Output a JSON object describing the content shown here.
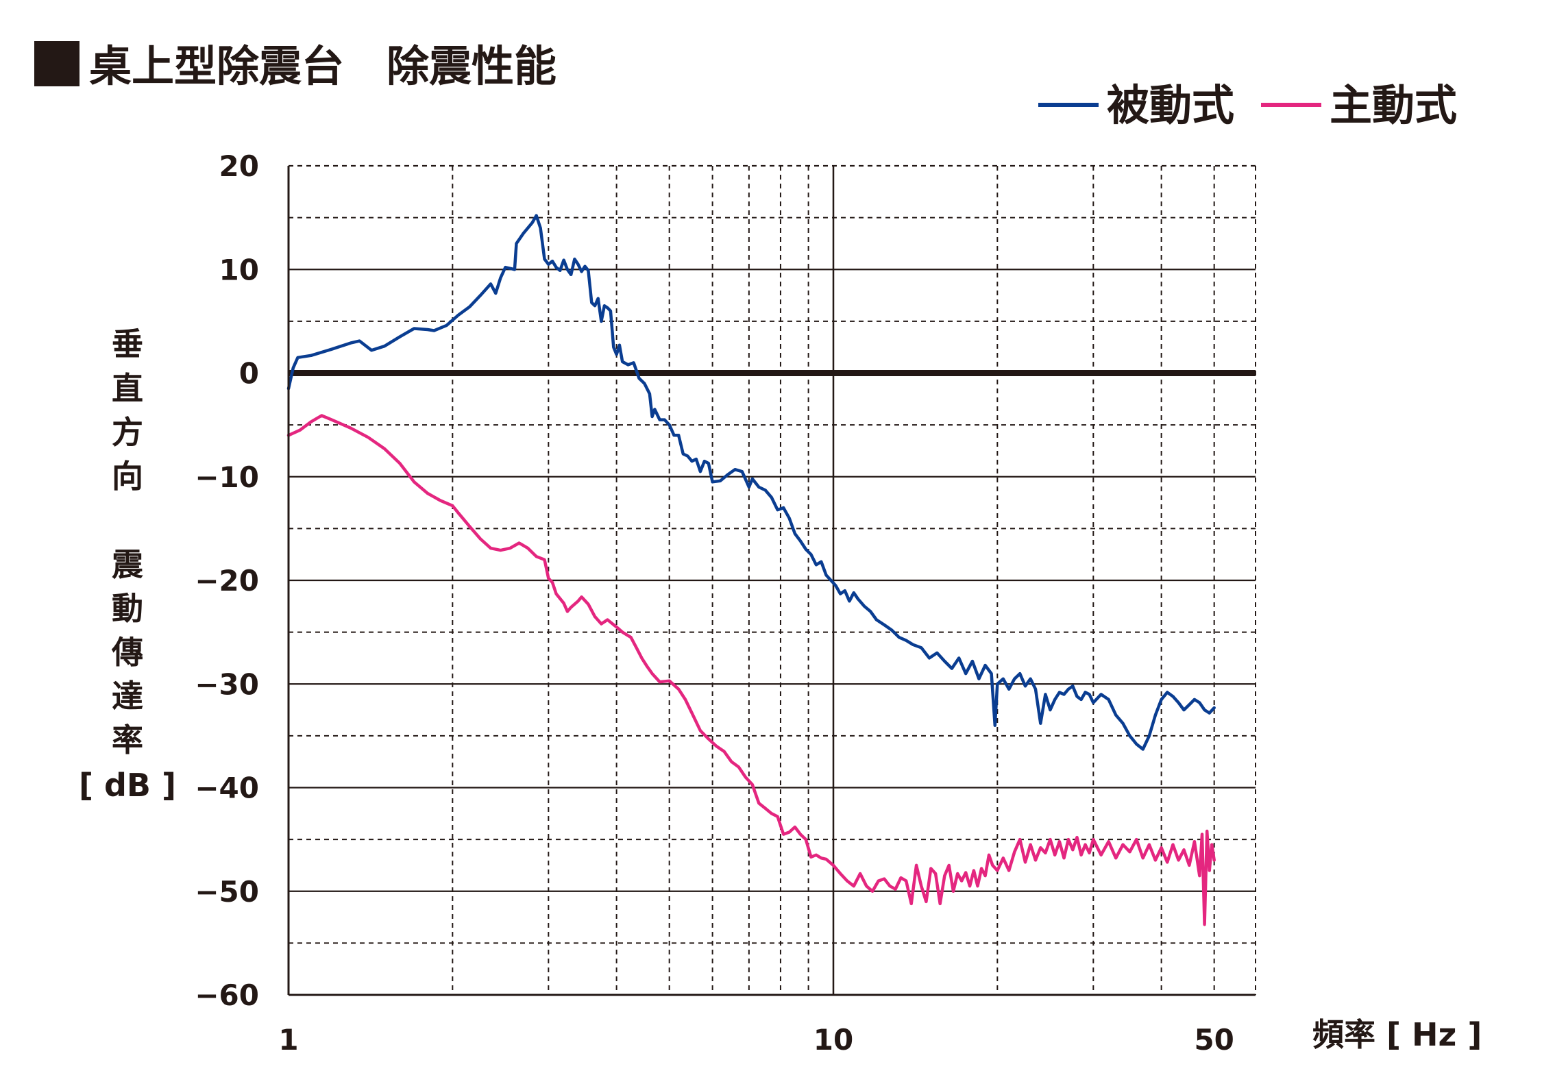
{
  "title": "桌上型除震台　除震性能",
  "chart_data": {
    "type": "line",
    "x_scale": "log",
    "xlim": [
      1,
      50
    ],
    "ylim": [
      -60,
      20
    ],
    "x_ticks": [
      {
        "value": 1,
        "label": "1"
      },
      {
        "value": 10,
        "label": "10"
      },
      {
        "value": 50,
        "label": "50"
      }
    ],
    "y_ticks": [
      {
        "value": 20,
        "label": "20"
      },
      {
        "value": 10,
        "label": "10"
      },
      {
        "value": 0,
        "label": "0"
      },
      {
        "value": -10,
        "label": "−10"
      },
      {
        "value": -20,
        "label": "−20"
      },
      {
        "value": -30,
        "label": "−30"
      },
      {
        "value": -40,
        "label": "−40"
      },
      {
        "value": -50,
        "label": "−50"
      },
      {
        "value": -60,
        "label": "−60"
      }
    ],
    "xlabel": "頻率 [ Hz ]",
    "ylabel_lines": [
      "垂",
      "直",
      "方",
      "向",
      "",
      "震",
      "動",
      "傳",
      "達",
      "率",
      "[ dB ]"
    ],
    "legend_position": "top-right",
    "grid": true,
    "reference_line": {
      "y": 0,
      "color": "#231815"
    },
    "series": [
      {
        "name": "被動式",
        "color": "#0a3d91",
        "points": [
          [
            1.0,
            -1.5
          ],
          [
            1.02,
            0.5
          ],
          [
            1.04,
            1.5
          ],
          [
            1.1,
            1.7
          ],
          [
            1.2,
            2.3
          ],
          [
            1.3,
            2.9
          ],
          [
            1.35,
            3.1
          ],
          [
            1.42,
            2.2
          ],
          [
            1.5,
            2.6
          ],
          [
            1.6,
            3.5
          ],
          [
            1.7,
            4.3
          ],
          [
            1.8,
            4.2
          ],
          [
            1.85,
            4.1
          ],
          [
            1.95,
            4.6
          ],
          [
            2.05,
            5.6
          ],
          [
            2.15,
            6.4
          ],
          [
            2.25,
            7.5
          ],
          [
            2.35,
            8.6
          ],
          [
            2.4,
            7.7
          ],
          [
            2.45,
            9.2
          ],
          [
            2.5,
            10.2
          ],
          [
            2.55,
            10.1
          ],
          [
            2.6,
            10.0
          ],
          [
            2.62,
            12.5
          ],
          [
            2.7,
            13.5
          ],
          [
            2.8,
            14.5
          ],
          [
            2.85,
            15.2
          ],
          [
            2.9,
            14.0
          ],
          [
            2.95,
            11.0
          ],
          [
            3.0,
            10.5
          ],
          [
            3.05,
            10.8
          ],
          [
            3.1,
            10.2
          ],
          [
            3.15,
            9.9
          ],
          [
            3.2,
            10.9
          ],
          [
            3.25,
            10.0
          ],
          [
            3.3,
            9.5
          ],
          [
            3.35,
            11.0
          ],
          [
            3.4,
            10.5
          ],
          [
            3.45,
            9.8
          ],
          [
            3.5,
            10.3
          ],
          [
            3.55,
            9.9
          ],
          [
            3.6,
            6.8
          ],
          [
            3.65,
            6.5
          ],
          [
            3.7,
            7.2
          ],
          [
            3.75,
            5.0
          ],
          [
            3.8,
            6.5
          ],
          [
            3.85,
            6.3
          ],
          [
            3.9,
            6.0
          ],
          [
            3.95,
            2.5
          ],
          [
            4.0,
            1.8
          ],
          [
            4.05,
            2.7
          ],
          [
            4.1,
            1.1
          ],
          [
            4.2,
            0.8
          ],
          [
            4.3,
            1.0
          ],
          [
            4.4,
            -0.5
          ],
          [
            4.5,
            -1.0
          ],
          [
            4.6,
            -2.0
          ],
          [
            4.65,
            -4.2
          ],
          [
            4.7,
            -3.5
          ],
          [
            4.8,
            -4.5
          ],
          [
            4.9,
            -4.5
          ],
          [
            5.0,
            -5.0
          ],
          [
            5.1,
            -6.0
          ],
          [
            5.2,
            -6.0
          ],
          [
            5.3,
            -7.8
          ],
          [
            5.4,
            -8.0
          ],
          [
            5.5,
            -8.5
          ],
          [
            5.6,
            -8.3
          ],
          [
            5.7,
            -9.5
          ],
          [
            5.8,
            -8.5
          ],
          [
            5.9,
            -8.7
          ],
          [
            6.0,
            -10.5
          ],
          [
            6.2,
            -10.4
          ],
          [
            6.4,
            -9.8
          ],
          [
            6.6,
            -9.3
          ],
          [
            6.8,
            -9.5
          ],
          [
            7.0,
            -11.0
          ],
          [
            7.1,
            -10.2
          ],
          [
            7.3,
            -11.0
          ],
          [
            7.5,
            -11.3
          ],
          [
            7.7,
            -12.0
          ],
          [
            7.9,
            -13.2
          ],
          [
            8.1,
            -13.0
          ],
          [
            8.3,
            -14.0
          ],
          [
            8.5,
            -15.5
          ],
          [
            8.7,
            -16.2
          ],
          [
            8.9,
            -17.0
          ],
          [
            9.1,
            -17.5
          ],
          [
            9.3,
            -18.5
          ],
          [
            9.5,
            -18.2
          ],
          [
            9.7,
            -19.5
          ],
          [
            9.9,
            -20.0
          ],
          [
            10.1,
            -20.5
          ],
          [
            10.3,
            -21.3
          ],
          [
            10.5,
            -21.0
          ],
          [
            10.7,
            -22.0
          ],
          [
            10.9,
            -21.2
          ],
          [
            11.1,
            -21.8
          ],
          [
            11.4,
            -22.5
          ],
          [
            11.7,
            -23.0
          ],
          [
            12.0,
            -23.8
          ],
          [
            12.4,
            -24.3
          ],
          [
            12.8,
            -24.8
          ],
          [
            13.2,
            -25.5
          ],
          [
            13.6,
            -25.8
          ],
          [
            14.0,
            -26.2
          ],
          [
            14.5,
            -26.5
          ],
          [
            15.0,
            -27.5
          ],
          [
            15.5,
            -27.0
          ],
          [
            16.0,
            -27.8
          ],
          [
            16.5,
            -28.5
          ],
          [
            17.0,
            -27.5
          ],
          [
            17.5,
            -29.0
          ],
          [
            18.0,
            -27.8
          ],
          [
            18.5,
            -29.5
          ],
          [
            19.0,
            -28.2
          ],
          [
            19.5,
            -29.0
          ],
          [
            19.8,
            -34.0
          ],
          [
            20.0,
            -30.0
          ],
          [
            20.5,
            -29.5
          ],
          [
            21.0,
            -30.5
          ],
          [
            21.5,
            -29.5
          ],
          [
            22.0,
            -29.0
          ],
          [
            22.5,
            -30.2
          ],
          [
            23.0,
            -29.5
          ],
          [
            23.5,
            -30.5
          ],
          [
            24.0,
            -33.8
          ],
          [
            24.5,
            -31.0
          ],
          [
            25.0,
            -32.5
          ],
          [
            25.5,
            -31.5
          ],
          [
            26.0,
            -30.8
          ],
          [
            26.5,
            -31.0
          ],
          [
            27.0,
            -30.5
          ],
          [
            27.5,
            -30.2
          ],
          [
            28.0,
            -31.2
          ],
          [
            28.5,
            -31.5
          ],
          [
            29.0,
            -30.8
          ],
          [
            29.5,
            -31.0
          ],
          [
            30.0,
            -31.8
          ],
          [
            31.0,
            -31.0
          ],
          [
            32.0,
            -31.5
          ],
          [
            33.0,
            -33.0
          ],
          [
            34.0,
            -33.8
          ],
          [
            35.0,
            -35.0
          ],
          [
            36.0,
            -35.8
          ],
          [
            37.0,
            -36.3
          ],
          [
            38.0,
            -35.0
          ],
          [
            39.0,
            -33.0
          ],
          [
            40.0,
            -31.5
          ],
          [
            41.0,
            -30.8
          ],
          [
            42.0,
            -31.2
          ],
          [
            43.0,
            -31.8
          ],
          [
            44.0,
            -32.5
          ],
          [
            45.0,
            -32.0
          ],
          [
            46.0,
            -31.5
          ],
          [
            47.0,
            -31.8
          ],
          [
            48.0,
            -32.5
          ],
          [
            49.0,
            -32.8
          ],
          [
            50.0,
            -32.3
          ]
        ]
      },
      {
        "name": "主動式",
        "color": "#e4267f",
        "points": [
          [
            1.0,
            -6.0
          ],
          [
            1.05,
            -5.5
          ],
          [
            1.1,
            -4.7
          ],
          [
            1.15,
            -4.1
          ],
          [
            1.2,
            -4.5
          ],
          [
            1.3,
            -5.3
          ],
          [
            1.4,
            -6.2
          ],
          [
            1.5,
            -7.3
          ],
          [
            1.6,
            -8.7
          ],
          [
            1.7,
            -10.5
          ],
          [
            1.8,
            -11.6
          ],
          [
            1.9,
            -12.3
          ],
          [
            2.0,
            -12.8
          ],
          [
            2.05,
            -13.5
          ],
          [
            2.15,
            -14.8
          ],
          [
            2.25,
            -16.0
          ],
          [
            2.35,
            -16.9
          ],
          [
            2.45,
            -17.1
          ],
          [
            2.55,
            -16.9
          ],
          [
            2.65,
            -16.4
          ],
          [
            2.75,
            -16.9
          ],
          [
            2.85,
            -17.7
          ],
          [
            2.95,
            -18.0
          ],
          [
            3.0,
            -19.8
          ],
          [
            3.05,
            -20.2
          ],
          [
            3.1,
            -21.3
          ],
          [
            3.2,
            -22.2
          ],
          [
            3.25,
            -23.0
          ],
          [
            3.3,
            -22.6
          ],
          [
            3.4,
            -22.0
          ],
          [
            3.45,
            -21.6
          ],
          [
            3.55,
            -22.3
          ],
          [
            3.65,
            -23.5
          ],
          [
            3.75,
            -24.2
          ],
          [
            3.85,
            -23.8
          ],
          [
            4.0,
            -24.5
          ],
          [
            4.1,
            -25.0
          ],
          [
            4.25,
            -25.5
          ],
          [
            4.35,
            -26.5
          ],
          [
            4.45,
            -27.5
          ],
          [
            4.55,
            -28.3
          ],
          [
            4.65,
            -29.0
          ],
          [
            4.8,
            -29.8
          ],
          [
            5.0,
            -29.7
          ],
          [
            5.2,
            -30.5
          ],
          [
            5.35,
            -31.5
          ],
          [
            5.5,
            -32.8
          ],
          [
            5.7,
            -34.5
          ],
          [
            5.9,
            -35.3
          ],
          [
            6.1,
            -36.0
          ],
          [
            6.3,
            -36.5
          ],
          [
            6.5,
            -37.5
          ],
          [
            6.7,
            -38.0
          ],
          [
            6.9,
            -39.0
          ],
          [
            7.1,
            -39.7
          ],
          [
            7.3,
            -41.5
          ],
          [
            7.5,
            -42.0
          ],
          [
            7.7,
            -42.5
          ],
          [
            7.9,
            -42.8
          ],
          [
            8.1,
            -44.5
          ],
          [
            8.3,
            -44.3
          ],
          [
            8.5,
            -43.8
          ],
          [
            8.7,
            -44.5
          ],
          [
            8.9,
            -45.0
          ],
          [
            9.1,
            -46.7
          ],
          [
            9.3,
            -46.5
          ],
          [
            9.5,
            -46.8
          ],
          [
            9.7,
            -46.9
          ],
          [
            10.0,
            -47.5
          ],
          [
            10.3,
            -48.3
          ],
          [
            10.6,
            -49.0
          ],
          [
            10.9,
            -49.5
          ],
          [
            11.2,
            -48.3
          ],
          [
            11.5,
            -49.5
          ],
          [
            11.8,
            -50.0
          ],
          [
            12.1,
            -49.0
          ],
          [
            12.4,
            -48.8
          ],
          [
            12.7,
            -49.5
          ],
          [
            13.0,
            -49.8
          ],
          [
            13.3,
            -48.7
          ],
          [
            13.6,
            -49.0
          ],
          [
            13.9,
            -51.2
          ],
          [
            14.2,
            -47.5
          ],
          [
            14.5,
            -49.5
          ],
          [
            14.8,
            -51.0
          ],
          [
            15.1,
            -47.8
          ],
          [
            15.4,
            -48.3
          ],
          [
            15.7,
            -51.2
          ],
          [
            16.0,
            -48.5
          ],
          [
            16.3,
            -47.5
          ],
          [
            16.6,
            -50.0
          ],
          [
            16.9,
            -48.3
          ],
          [
            17.2,
            -49.0
          ],
          [
            17.5,
            -48.2
          ],
          [
            17.8,
            -49.5
          ],
          [
            18.1,
            -48.0
          ],
          [
            18.4,
            -49.5
          ],
          [
            18.7,
            -47.8
          ],
          [
            19.0,
            -48.5
          ],
          [
            19.3,
            -46.5
          ],
          [
            19.6,
            -47.5
          ],
          [
            20.0,
            -48.0
          ],
          [
            20.5,
            -46.8
          ],
          [
            21.0,
            -48.0
          ],
          [
            21.5,
            -46.2
          ],
          [
            22.0,
            -45.0
          ],
          [
            22.5,
            -47.2
          ],
          [
            23.0,
            -45.5
          ],
          [
            23.5,
            -47.0
          ],
          [
            24.0,
            -45.8
          ],
          [
            24.5,
            -46.3
          ],
          [
            25.0,
            -45.0
          ],
          [
            25.5,
            -46.5
          ],
          [
            26.0,
            -45.2
          ],
          [
            26.5,
            -46.8
          ],
          [
            27.0,
            -45.0
          ],
          [
            27.5,
            -46.0
          ],
          [
            28.0,
            -44.8
          ],
          [
            28.5,
            -46.5
          ],
          [
            29.0,
            -45.5
          ],
          [
            29.5,
            -46.3
          ],
          [
            30.0,
            -45.0
          ],
          [
            31.0,
            -46.5
          ],
          [
            32.0,
            -45.2
          ],
          [
            33.0,
            -46.8
          ],
          [
            34.0,
            -45.5
          ],
          [
            35.0,
            -46.2
          ],
          [
            36.0,
            -45.0
          ],
          [
            37.0,
            -46.8
          ],
          [
            38.0,
            -45.5
          ],
          [
            39.0,
            -47.0
          ],
          [
            40.0,
            -45.8
          ],
          [
            41.0,
            -47.2
          ],
          [
            42.0,
            -45.5
          ],
          [
            43.0,
            -47.0
          ],
          [
            44.0,
            -46.0
          ],
          [
            45.0,
            -47.5
          ],
          [
            46.0,
            -45.2
          ],
          [
            47.0,
            -48.5
          ],
          [
            47.5,
            -44.5
          ],
          [
            48.0,
            -53.2
          ],
          [
            48.5,
            -44.2
          ],
          [
            49.0,
            -48.0
          ],
          [
            49.5,
            -45.5
          ],
          [
            50.0,
            -47.0
          ]
        ]
      }
    ]
  }
}
